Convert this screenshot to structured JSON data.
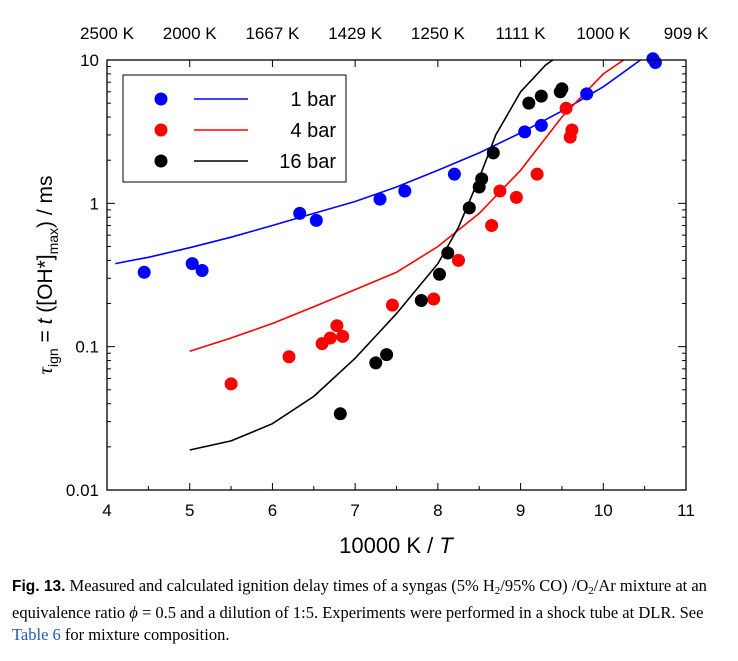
{
  "chart_data": {
    "type": "scatter",
    "xlabel_prefix": "10000 K / ",
    "xlabel_italic": "T",
    "ylabel": {
      "tau": "τ",
      "ign": "ign",
      "eq": " = ",
      "t": "t",
      "open": " ([OH*]",
      "max": "max",
      "close": ") / ms"
    },
    "xlim": [
      4,
      11
    ],
    "ylim": [
      0.01,
      10
    ],
    "yscale": "log",
    "x_ticks": [
      "4",
      "5",
      "6",
      "7",
      "8",
      "9",
      "10",
      "11"
    ],
    "y_ticks": [
      "0.01",
      "0.1",
      "1",
      "10"
    ],
    "top_axis_ticks": [
      {
        "x": 4.0,
        "label": "2500 K"
      },
      {
        "x": 5.0,
        "label": "2000 K"
      },
      {
        "x": 6.0,
        "label": "1667 K"
      },
      {
        "x": 7.0,
        "label": "1429 K"
      },
      {
        "x": 8.0,
        "label": "1250 K"
      },
      {
        "x": 9.0,
        "label": "1111 K"
      },
      {
        "x": 10.0,
        "label": "1000 K"
      },
      {
        "x": 11.0,
        "label": "909 K"
      }
    ],
    "legend_position": "top-left",
    "series": [
      {
        "name": "1 bar",
        "color": "#0000ff",
        "points": [
          [
            4.45,
            0.33
          ],
          [
            5.03,
            0.38
          ],
          [
            5.15,
            0.34
          ],
          [
            6.33,
            0.85
          ],
          [
            6.53,
            0.76
          ],
          [
            7.3,
            1.07
          ],
          [
            7.6,
            1.22
          ],
          [
            8.2,
            1.6
          ],
          [
            9.05,
            3.15
          ],
          [
            9.25,
            3.5
          ],
          [
            9.8,
            5.8
          ],
          [
            10.6,
            10.2
          ],
          [
            10.63,
            9.6
          ]
        ],
        "curve": [
          [
            4.1,
            0.38
          ],
          [
            4.5,
            0.42
          ],
          [
            5.0,
            0.49
          ],
          [
            5.5,
            0.58
          ],
          [
            6.0,
            0.7
          ],
          [
            6.5,
            0.85
          ],
          [
            7.0,
            1.03
          ],
          [
            7.5,
            1.3
          ],
          [
            8.0,
            1.7
          ],
          [
            8.5,
            2.25
          ],
          [
            9.0,
            3.1
          ],
          [
            9.5,
            4.4
          ],
          [
            10.0,
            6.5
          ],
          [
            10.5,
            10.5
          ],
          [
            10.7,
            12.2
          ]
        ]
      },
      {
        "name": "4 bar",
        "color": "#ff0000",
        "points": [
          [
            5.5,
            0.055
          ],
          [
            6.2,
            0.085
          ],
          [
            6.6,
            0.105
          ],
          [
            6.7,
            0.115
          ],
          [
            6.78,
            0.14
          ],
          [
            6.85,
            0.118
          ],
          [
            7.45,
            0.195
          ],
          [
            7.95,
            0.215
          ],
          [
            8.25,
            0.4
          ],
          [
            8.65,
            0.7
          ],
          [
            8.75,
            1.22
          ],
          [
            8.95,
            1.1
          ],
          [
            9.2,
            1.6
          ],
          [
            9.55,
            4.6
          ],
          [
            9.6,
            2.9
          ],
          [
            9.62,
            3.25
          ]
        ],
        "curve": [
          [
            5.0,
            0.093
          ],
          [
            5.5,
            0.115
          ],
          [
            6.0,
            0.145
          ],
          [
            6.5,
            0.19
          ],
          [
            7.0,
            0.25
          ],
          [
            7.5,
            0.33
          ],
          [
            8.0,
            0.5
          ],
          [
            8.5,
            0.85
          ],
          [
            9.0,
            1.7
          ],
          [
            9.5,
            4.0
          ],
          [
            10.0,
            8.0
          ],
          [
            10.4,
            11.5
          ],
          [
            10.6,
            12.2
          ]
        ]
      },
      {
        "name": "16 bar",
        "color": "#000000",
        "points": [
          [
            6.82,
            0.034
          ],
          [
            7.25,
            0.077
          ],
          [
            7.38,
            0.088
          ],
          [
            7.8,
            0.21
          ],
          [
            8.02,
            0.32
          ],
          [
            8.12,
            0.45
          ],
          [
            8.38,
            0.93
          ],
          [
            8.5,
            1.3
          ],
          [
            8.53,
            1.48
          ],
          [
            8.67,
            2.25
          ],
          [
            9.1,
            5.0
          ],
          [
            9.25,
            5.6
          ],
          [
            9.48,
            6.0
          ],
          [
            9.5,
            6.3
          ]
        ],
        "curve": [
          [
            5.0,
            0.019
          ],
          [
            5.5,
            0.022
          ],
          [
            6.0,
            0.029
          ],
          [
            6.5,
            0.045
          ],
          [
            7.0,
            0.083
          ],
          [
            7.5,
            0.17
          ],
          [
            8.0,
            0.38
          ],
          [
            8.25,
            0.68
          ],
          [
            8.5,
            1.5
          ],
          [
            8.7,
            3.0
          ],
          [
            9.0,
            6.0
          ],
          [
            9.3,
            9.2
          ],
          [
            9.6,
            12.2
          ],
          [
            10.7,
            12.2
          ]
        ]
      }
    ]
  },
  "caption": {
    "label": "Fig. 13.",
    "text1": " Measured and calculated ignition delay times of a syngas (5% H",
    "sub1": "2",
    "text2": "/95% CO) /O",
    "sub2": "2",
    "text3": "/Ar mixture at an equivalence ratio ",
    "phi": "ϕ",
    "text4": " = 0.5 and a dilution of 1:5. Experiments were performed in a shock tube at DLR. See ",
    "link": "Table 6",
    "text5": " for mixture composition."
  }
}
